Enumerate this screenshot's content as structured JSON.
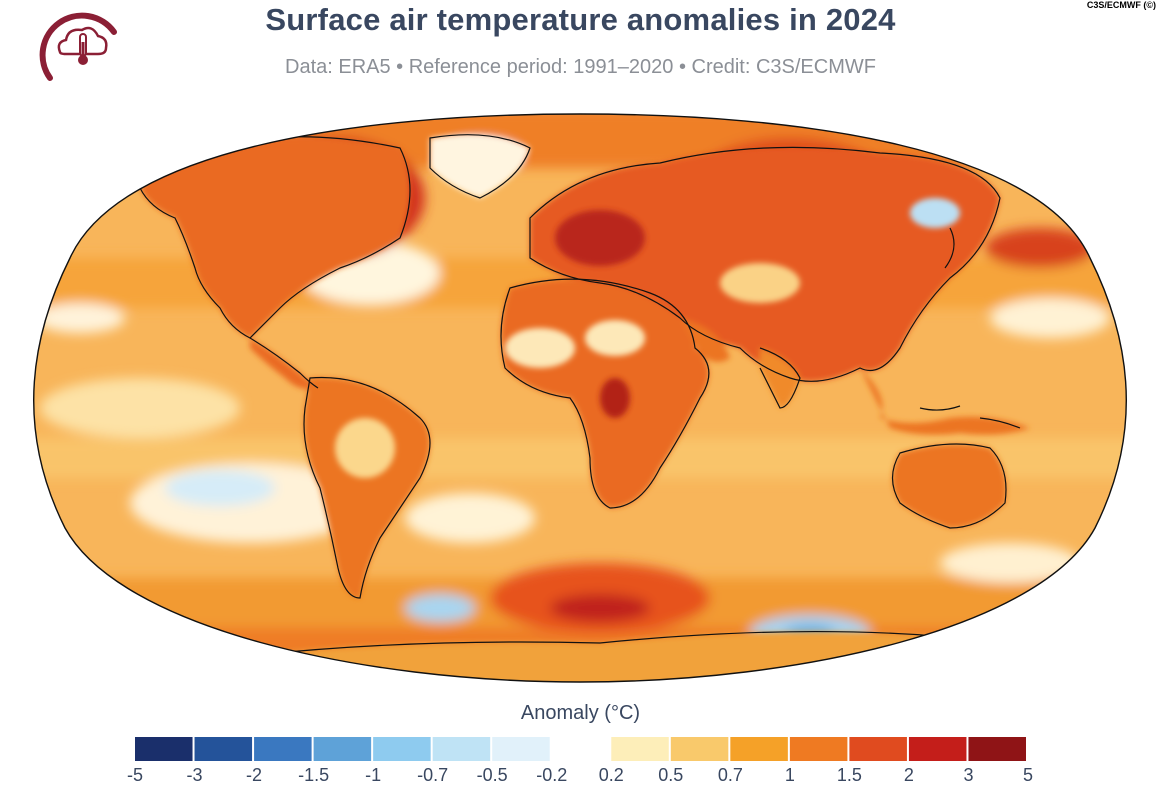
{
  "header": {
    "title": "Surface air temperature anomalies in 2024",
    "subtitle": "Data: ERA5 • Reference period: 1991–2020 • Credit: C3S/ECMWF",
    "credit_tag": "C3S/ECMWF (©)",
    "logo_icon": "cloud-thermometer-icon"
  },
  "legend": {
    "title": "Anomaly (°C)",
    "ticks": [
      "-5",
      "-3",
      "-2",
      "-1.5",
      "-1",
      "-0.7",
      "-0.5",
      "-0.2",
      "0.2",
      "0.5",
      "0.7",
      "1",
      "1.5",
      "2",
      "3",
      "5"
    ],
    "colors": [
      "#1a2f6b",
      "#24539a",
      "#3a78c0",
      "#5ea2d8",
      "#8ecbef",
      "#bfe3f5",
      "#e1f1fa",
      "#ffffff",
      "#fdeeb9",
      "#f9c96b",
      "#f5a128",
      "#ef7a22",
      "#e04b1f",
      "#c41e1a",
      "#8f1416"
    ]
  },
  "colors": {
    "title": "#394760",
    "subtitle": "#8b8f96",
    "logo": "#8b1f35",
    "ocean_base": "#f7b057",
    "land_warm": "#ea6a22"
  }
}
